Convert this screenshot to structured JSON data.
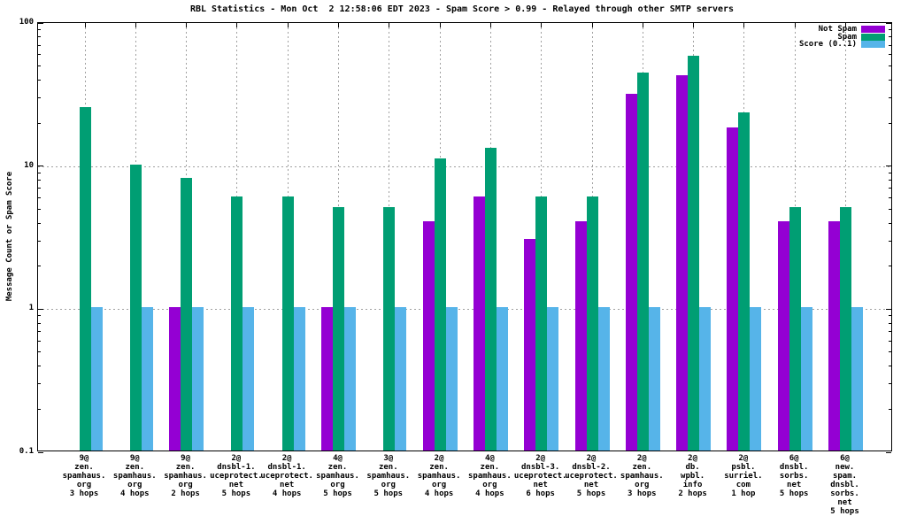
{
  "chart_data": {
    "type": "bar",
    "title": "RBL Statistics - Mon Oct  2 12:58:06 EDT 2023 - Spam Score > 0.99 - Relayed through other SMTP servers",
    "ylabel": "Message Count or Spam Score",
    "xlabel": "",
    "yscale": "log",
    "ylim": [
      0.1,
      100
    ],
    "ytick_values": [
      100,
      10,
      1,
      0.1
    ],
    "ytick_labels": [
      "100",
      "10",
      "1",
      "0.1"
    ],
    "grid": true,
    "legend_position": "top-right",
    "background_color": "#ffffff",
    "grid_color": "#a0a0a0",
    "legend": [
      {
        "key": "not_spam",
        "label": "Not Spam",
        "color": "#9400d3"
      },
      {
        "key": "spam",
        "label": "Spam",
        "color": "#009e73"
      },
      {
        "key": "score",
        "label": "Score (0..1)",
        "color": "#56b4e9"
      }
    ],
    "categories": [
      [
        "9@",
        "zen.",
        "spamhaus.",
        "org",
        "3 hops"
      ],
      [
        "9@",
        "zen.",
        "spamhaus.",
        "org",
        "4 hops"
      ],
      [
        "9@",
        "zen.",
        "spamhaus.",
        "org",
        "2 hops"
      ],
      [
        "2@",
        "dnsbl-1.",
        "uceprotect.",
        "net",
        "5 hops"
      ],
      [
        "2@",
        "dnsbl-1.",
        "uceprotect.",
        "net",
        "4 hops"
      ],
      [
        "4@",
        "zen.",
        "spamhaus.",
        "org",
        "5 hops"
      ],
      [
        "3@",
        "zen.",
        "spamhaus.",
        "org",
        "5 hops"
      ],
      [
        "2@",
        "zen.",
        "spamhaus.",
        "org",
        "4 hops"
      ],
      [
        "4@",
        "zen.",
        "spamhaus.",
        "org",
        "4 hops"
      ],
      [
        "2@",
        "dnsbl-3.",
        "uceprotect.",
        "net",
        "6 hops"
      ],
      [
        "2@",
        "dnsbl-2.",
        "uceprotect.",
        "net",
        "5 hops"
      ],
      [
        "2@",
        "zen.",
        "spamhaus.",
        "org",
        "3 hops"
      ],
      [
        "2@",
        "db.",
        "wpbl.",
        "info",
        "2 hops"
      ],
      [
        "2@",
        "psbl.",
        "surriel.",
        "com",
        "1 hop"
      ],
      [
        "6@",
        "dnsbl.",
        "sorbs.",
        "net",
        "5 hops"
      ],
      [
        "6@",
        "new.",
        "spam.",
        "dnsbl.",
        "sorbs.",
        "net",
        "5 hops"
      ]
    ],
    "series": [
      {
        "name": "Not Spam",
        "color": "#9400d3",
        "values": [
          null,
          null,
          1,
          null,
          null,
          1,
          null,
          4,
          6,
          3,
          4,
          31,
          42,
          18,
          4,
          4
        ]
      },
      {
        "name": "Spam",
        "color": "#009e73",
        "values": [
          25,
          10,
          8,
          6,
          6,
          5,
          5,
          11,
          13,
          6,
          6,
          44,
          57,
          23,
          5,
          5
        ]
      },
      {
        "name": "Score (0..1)",
        "color": "#56b4e9",
        "values": [
          1,
          1,
          1,
          1,
          1,
          1,
          1,
          1,
          1,
          1,
          1,
          1,
          1,
          1,
          1,
          1
        ]
      }
    ]
  }
}
